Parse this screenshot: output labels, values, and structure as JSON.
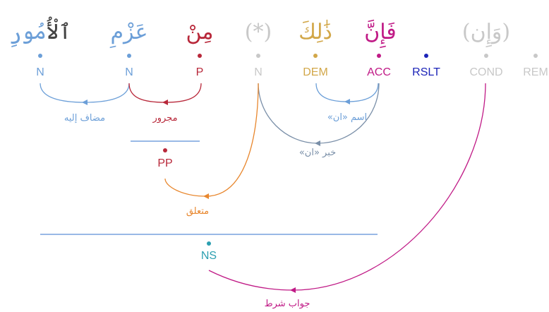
{
  "colors": {
    "blue": "#6c9fd8",
    "red": "#b8283a",
    "gray": "#c8c8c8",
    "gold": "#d2a749",
    "magenta": "#c01a86",
    "navy": "#1c24b8",
    "slate": "#7a8fa8",
    "orange": "#e8872e",
    "teal": "#2c9fb0",
    "dark": "#444444",
    "line": "#5c8fd6"
  },
  "words": [
    {
      "id": "w0",
      "parts": [
        {
          "text": "ٱلْأُ",
          "color": "dark"
        },
        {
          "text": "مُورِ",
          "color": "blue"
        }
      ]
    },
    {
      "id": "w1",
      "parts": [
        {
          "text": "عَزْمِ",
          "color": "blue"
        }
      ]
    },
    {
      "id": "w2",
      "parts": [
        {
          "text": "مِنْ",
          "color": "red"
        }
      ]
    },
    {
      "id": "w3",
      "parts": [
        {
          "text": "(*)",
          "color": "gray"
        }
      ]
    },
    {
      "id": "w4",
      "parts": [
        {
          "text": "ذَٰلِكَ",
          "color": "gold"
        }
      ]
    },
    {
      "id": "w5",
      "parts": [
        {
          "text": "فَإِنَّ",
          "color": "magenta"
        }
      ]
    },
    {
      "id": "w6",
      "parts": [
        {
          "text": "(وَإِن)",
          "color": "gray"
        }
      ]
    }
  ],
  "tags": [
    {
      "id": "t0",
      "text": "N",
      "color": "blue"
    },
    {
      "id": "t1",
      "text": "N",
      "color": "blue"
    },
    {
      "id": "t2",
      "text": "P",
      "color": "red"
    },
    {
      "id": "t3",
      "text": "N",
      "color": "gray"
    },
    {
      "id": "t4",
      "text": "DEM",
      "color": "gold"
    },
    {
      "id": "t5",
      "text": "ACC",
      "color": "magenta"
    },
    {
      "id": "t6",
      "text": "RSLT",
      "color": "navy"
    },
    {
      "id": "t7",
      "text": "COND",
      "color": "gray"
    },
    {
      "id": "t8",
      "text": "REM",
      "color": "gray"
    }
  ],
  "phrases": [
    {
      "id": "pp",
      "text": "PP",
      "color": "red"
    },
    {
      "id": "ns",
      "text": "NS",
      "color": "teal"
    }
  ],
  "edges": [
    {
      "id": "e0",
      "label": "مضاف إليه",
      "color": "blue"
    },
    {
      "id": "e1",
      "label": "مجرور",
      "color": "red"
    },
    {
      "id": "e2",
      "label": "اسم «ان»",
      "color": "blue"
    },
    {
      "id": "e3",
      "label": "خبر «ان»",
      "color": "slate"
    },
    {
      "id": "e4",
      "label": "متعلق",
      "color": "orange"
    },
    {
      "id": "e5",
      "label": "جواب شرط",
      "color": "magenta"
    }
  ]
}
